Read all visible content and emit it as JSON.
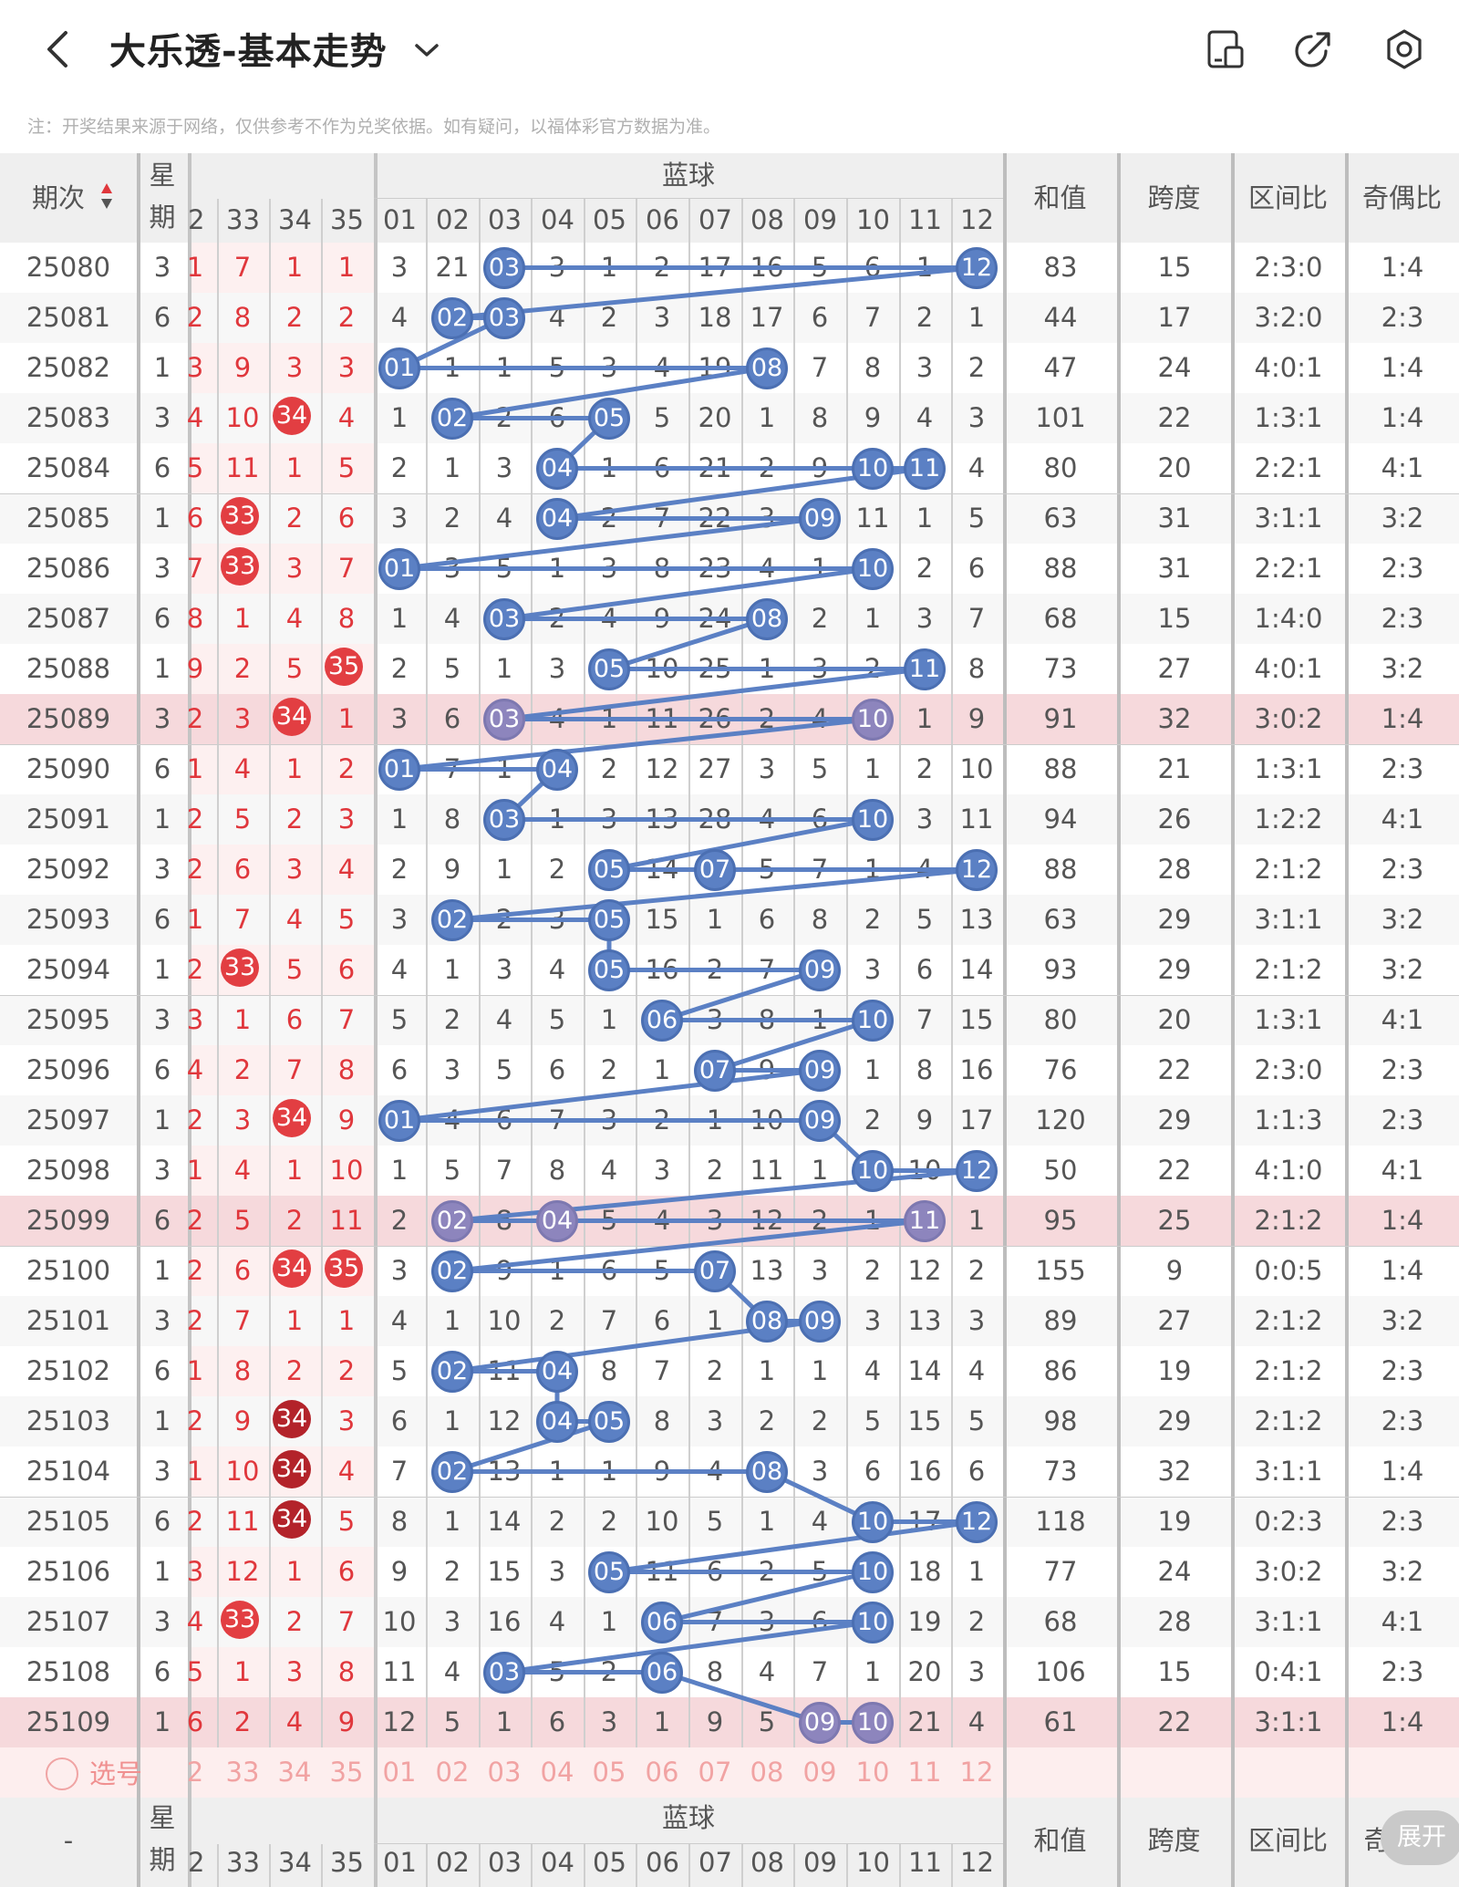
{
  "header": {
    "title": "大乐透-基本走势",
    "notice": "注：开奖结果来源于网络，仅供参考不作为兑奖依据。如有疑问，以福体彩官方数据为准。",
    "icons": [
      "back-icon",
      "chevron-down-icon",
      "tablet-icon",
      "share-icon",
      "settings-icon"
    ]
  },
  "table": {
    "col_issue": "期次",
    "col_week": [
      "星",
      "期"
    ],
    "blue_group": "蓝球",
    "col_sum": "和值",
    "col_span": "跨度",
    "col_zone": "区间比",
    "col_oddeven": "奇偶比",
    "red_headers": [
      "2",
      "33",
      "34",
      "35"
    ],
    "blue_headers": [
      "01",
      "02",
      "03",
      "04",
      "05",
      "06",
      "07",
      "08",
      "09",
      "10",
      "11",
      "12"
    ],
    "rows": [
      {
        "issue": "25080",
        "week": "3",
        "red": [
          "1",
          "7",
          "1",
          "1"
        ],
        "blue": [
          "3",
          "21",
          "03",
          "3",
          "1",
          "2",
          "17",
          "16",
          "5",
          "6",
          "1",
          "12"
        ],
        "sum": "83",
        "span": "15",
        "zone": "2:3:0",
        "oe": "1:4"
      },
      {
        "issue": "25081",
        "week": "6",
        "red": [
          "2",
          "8",
          "2",
          "2"
        ],
        "blue": [
          "4",
          "02",
          "03",
          "4",
          "2",
          "3",
          "18",
          "17",
          "6",
          "7",
          "2",
          "1"
        ],
        "sum": "44",
        "span": "17",
        "zone": "3:2:0",
        "oe": "2:3"
      },
      {
        "issue": "25082",
        "week": "1",
        "red": [
          "3",
          "9",
          "3",
          "3"
        ],
        "blue": [
          "01",
          "1",
          "1",
          "5",
          "3",
          "4",
          "19",
          "08",
          "7",
          "8",
          "3",
          "2"
        ],
        "sum": "47",
        "span": "24",
        "zone": "4:0:1",
        "oe": "1:4"
      },
      {
        "issue": "25083",
        "week": "3",
        "red": [
          "4",
          "10",
          "34",
          "4"
        ],
        "blue": [
          "1",
          "02",
          "2",
          "6",
          "05",
          "5",
          "20",
          "1",
          "8",
          "9",
          "4",
          "3"
        ],
        "sum": "101",
        "span": "22",
        "zone": "1:3:1",
        "oe": "1:4"
      },
      {
        "issue": "25084",
        "week": "6",
        "red": [
          "5",
          "11",
          "1",
          "5"
        ],
        "blue": [
          "2",
          "1",
          "3",
          "04",
          "1",
          "6",
          "21",
          "2",
          "9",
          "10",
          "11",
          "4"
        ],
        "sum": "80",
        "span": "20",
        "zone": "2:2:1",
        "oe": "4:1"
      },
      {
        "issue": "25085",
        "week": "1",
        "red": [
          "6",
          "33",
          "2",
          "6"
        ],
        "blue": [
          "3",
          "2",
          "4",
          "04",
          "2",
          "7",
          "22",
          "3",
          "09",
          "11",
          "1",
          "5"
        ],
        "sum": "63",
        "span": "31",
        "zone": "3:1:1",
        "oe": "3:2"
      },
      {
        "issue": "25086",
        "week": "3",
        "red": [
          "7",
          "33",
          "3",
          "7"
        ],
        "blue": [
          "01",
          "3",
          "5",
          "1",
          "3",
          "8",
          "23",
          "4",
          "1",
          "10",
          "2",
          "6"
        ],
        "sum": "88",
        "span": "31",
        "zone": "2:2:1",
        "oe": "2:3"
      },
      {
        "issue": "25087",
        "week": "6",
        "red": [
          "8",
          "1",
          "4",
          "8"
        ],
        "blue": [
          "1",
          "4",
          "03",
          "2",
          "4",
          "9",
          "24",
          "08",
          "2",
          "1",
          "3",
          "7"
        ],
        "sum": "68",
        "span": "15",
        "zone": "1:4:0",
        "oe": "2:3"
      },
      {
        "issue": "25088",
        "week": "1",
        "red": [
          "9",
          "2",
          "5",
          "35"
        ],
        "blue": [
          "2",
          "5",
          "1",
          "3",
          "05",
          "10",
          "25",
          "1",
          "3",
          "2",
          "11",
          "8"
        ],
        "sum": "73",
        "span": "27",
        "zone": "4:0:1",
        "oe": "3:2"
      },
      {
        "issue": "25089",
        "week": "3",
        "red": [
          "2",
          "3",
          "34",
          "1"
        ],
        "blue": [
          "3",
          "6",
          "03",
          "4",
          "1",
          "11",
          "26",
          "2",
          "4",
          "10",
          "1",
          "9"
        ],
        "sum": "91",
        "span": "32",
        "zone": "3:0:2",
        "oe": "1:4"
      },
      {
        "issue": "25090",
        "week": "6",
        "red": [
          "1",
          "4",
          "1",
          "2"
        ],
        "blue": [
          "01",
          "7",
          "1",
          "04",
          "2",
          "12",
          "27",
          "3",
          "5",
          "1",
          "2",
          "10"
        ],
        "sum": "88",
        "span": "21",
        "zone": "1:3:1",
        "oe": "2:3"
      },
      {
        "issue": "25091",
        "week": "1",
        "red": [
          "2",
          "5",
          "2",
          "3"
        ],
        "blue": [
          "1",
          "8",
          "03",
          "1",
          "3",
          "13",
          "28",
          "4",
          "6",
          "10",
          "3",
          "11"
        ],
        "sum": "94",
        "span": "26",
        "zone": "1:2:2",
        "oe": "4:1"
      },
      {
        "issue": "25092",
        "week": "3",
        "red": [
          "2",
          "6",
          "3",
          "4"
        ],
        "blue": [
          "2",
          "9",
          "1",
          "2",
          "05",
          "14",
          "07",
          "5",
          "7",
          "1",
          "4",
          "12"
        ],
        "sum": "88",
        "span": "28",
        "zone": "2:1:2",
        "oe": "2:3"
      },
      {
        "issue": "25093",
        "week": "6",
        "red": [
          "1",
          "7",
          "4",
          "5"
        ],
        "blue": [
          "3",
          "02",
          "2",
          "3",
          "05",
          "15",
          "1",
          "6",
          "8",
          "2",
          "5",
          "13"
        ],
        "sum": "63",
        "span": "29",
        "zone": "3:1:1",
        "oe": "3:2"
      },
      {
        "issue": "25094",
        "week": "1",
        "red": [
          "2",
          "33",
          "5",
          "6"
        ],
        "blue": [
          "4",
          "1",
          "3",
          "4",
          "05",
          "16",
          "2",
          "7",
          "09",
          "3",
          "6",
          "14"
        ],
        "sum": "93",
        "span": "29",
        "zone": "2:1:2",
        "oe": "3:2"
      },
      {
        "issue": "25095",
        "week": "3",
        "red": [
          "3",
          "1",
          "6",
          "7"
        ],
        "blue": [
          "5",
          "2",
          "4",
          "5",
          "1",
          "06",
          "3",
          "8",
          "1",
          "10",
          "7",
          "15"
        ],
        "sum": "80",
        "span": "20",
        "zone": "1:3:1",
        "oe": "4:1"
      },
      {
        "issue": "25096",
        "week": "6",
        "red": [
          "4",
          "2",
          "7",
          "8"
        ],
        "blue": [
          "6",
          "3",
          "5",
          "6",
          "2",
          "1",
          "07",
          "9",
          "09",
          "1",
          "8",
          "16"
        ],
        "sum": "76",
        "span": "22",
        "zone": "2:3:0",
        "oe": "2:3"
      },
      {
        "issue": "25097",
        "week": "1",
        "red": [
          "2",
          "3",
          "34",
          "9"
        ],
        "blue": [
          "01",
          "4",
          "6",
          "7",
          "3",
          "2",
          "1",
          "10",
          "09",
          "2",
          "9",
          "17"
        ],
        "sum": "120",
        "span": "29",
        "zone": "1:1:3",
        "oe": "2:3"
      },
      {
        "issue": "25098",
        "week": "3",
        "red": [
          "1",
          "4",
          "1",
          "10"
        ],
        "blue": [
          "1",
          "5",
          "7",
          "8",
          "4",
          "3",
          "2",
          "11",
          "1",
          "10",
          "10",
          "12"
        ],
        "sum": "50",
        "span": "22",
        "zone": "4:1:0",
        "oe": "4:1"
      },
      {
        "issue": "25099",
        "week": "6",
        "red": [
          "2",
          "5",
          "2",
          "11"
        ],
        "blue": [
          "2",
          "02",
          "8",
          "04",
          "5",
          "4",
          "3",
          "12",
          "2",
          "1",
          "11",
          "1"
        ],
        "sum": "95",
        "span": "25",
        "zone": "2:1:2",
        "oe": "1:4"
      },
      {
        "issue": "25100",
        "week": "1",
        "red": [
          "2",
          "6",
          "34",
          "35"
        ],
        "blue": [
          "3",
          "02",
          "9",
          "1",
          "6",
          "5",
          "07",
          "13",
          "3",
          "2",
          "12",
          "2"
        ],
        "sum": "155",
        "span": "9",
        "zone": "0:0:5",
        "oe": "1:4"
      },
      {
        "issue": "25101",
        "week": "3",
        "red": [
          "2",
          "7",
          "1",
          "1"
        ],
        "blue": [
          "4",
          "1",
          "10",
          "2",
          "7",
          "6",
          "1",
          "08",
          "09",
          "3",
          "13",
          "3"
        ],
        "sum": "89",
        "span": "27",
        "zone": "2:1:2",
        "oe": "3:2"
      },
      {
        "issue": "25102",
        "week": "6",
        "red": [
          "1",
          "8",
          "2",
          "2"
        ],
        "blue": [
          "5",
          "02",
          "11",
          "04",
          "8",
          "7",
          "2",
          "1",
          "1",
          "4",
          "14",
          "4"
        ],
        "sum": "86",
        "span": "19",
        "zone": "2:1:2",
        "oe": "2:3"
      },
      {
        "issue": "25103",
        "week": "1",
        "red": [
          "2",
          "9",
          "34",
          "3"
        ],
        "blue": [
          "6",
          "1",
          "12",
          "04",
          "05",
          "8",
          "3",
          "2",
          "2",
          "5",
          "15",
          "5"
        ],
        "sum": "98",
        "span": "29",
        "zone": "2:1:2",
        "oe": "2:3"
      },
      {
        "issue": "25104",
        "week": "3",
        "red": [
          "1",
          "10",
          "34",
          "4"
        ],
        "blue": [
          "7",
          "02",
          "13",
          "1",
          "1",
          "9",
          "4",
          "08",
          "3",
          "6",
          "16",
          "6"
        ],
        "sum": "73",
        "span": "32",
        "zone": "3:1:1",
        "oe": "1:4"
      },
      {
        "issue": "25105",
        "week": "6",
        "red": [
          "2",
          "11",
          "34",
          "5"
        ],
        "blue": [
          "8",
          "1",
          "14",
          "2",
          "2",
          "10",
          "5",
          "1",
          "4",
          "10",
          "17",
          "12"
        ],
        "sum": "118",
        "span": "19",
        "zone": "0:2:3",
        "oe": "2:3"
      },
      {
        "issue": "25106",
        "week": "1",
        "red": [
          "3",
          "12",
          "1",
          "6"
        ],
        "blue": [
          "9",
          "2",
          "15",
          "3",
          "05",
          "11",
          "6",
          "2",
          "5",
          "10",
          "18",
          "1"
        ],
        "sum": "77",
        "span": "24",
        "zone": "3:0:2",
        "oe": "3:2"
      },
      {
        "issue": "25107",
        "week": "3",
        "red": [
          "4",
          "33",
          "2",
          "7"
        ],
        "blue": [
          "10",
          "3",
          "16",
          "4",
          "1",
          "06",
          "7",
          "3",
          "6",
          "10",
          "19",
          "2"
        ],
        "sum": "68",
        "span": "28",
        "zone": "3:1:1",
        "oe": "4:1"
      },
      {
        "issue": "25108",
        "week": "6",
        "red": [
          "5",
          "1",
          "3",
          "8"
        ],
        "blue": [
          "11",
          "4",
          "03",
          "5",
          "2",
          "06",
          "8",
          "4",
          "7",
          "1",
          "20",
          "3"
        ],
        "sum": "106",
        "span": "15",
        "zone": "0:4:1",
        "oe": "2:3"
      },
      {
        "issue": "25109",
        "week": "1",
        "red": [
          "6",
          "2",
          "4",
          "9"
        ],
        "blue": [
          "12",
          "5",
          "1",
          "6",
          "3",
          "1",
          "9",
          "5",
          "09",
          "10",
          "21",
          "4"
        ],
        "sum": "61",
        "span": "22",
        "zone": "3:1:1",
        "oe": "1:4"
      }
    ],
    "select_label": "选号",
    "select_red": [
      "2",
      "33",
      "34",
      "35"
    ],
    "select_blue": [
      "01",
      "02",
      "03",
      "04",
      "05",
      "06",
      "07",
      "08",
      "09",
      "10",
      "11",
      "12"
    ],
    "footer_issue": "-",
    "footer_oe_partial": "奇",
    "expand_label": "展开"
  },
  "colors": {
    "blue_ball": "#5b80c4",
    "blue_ball_highlight": "#8d85bd",
    "red_ball": "#e23e42",
    "red_ball_dark": "#b3232a",
    "highlight_row": "#f6d9dc",
    "red_text": "#e0373c"
  }
}
